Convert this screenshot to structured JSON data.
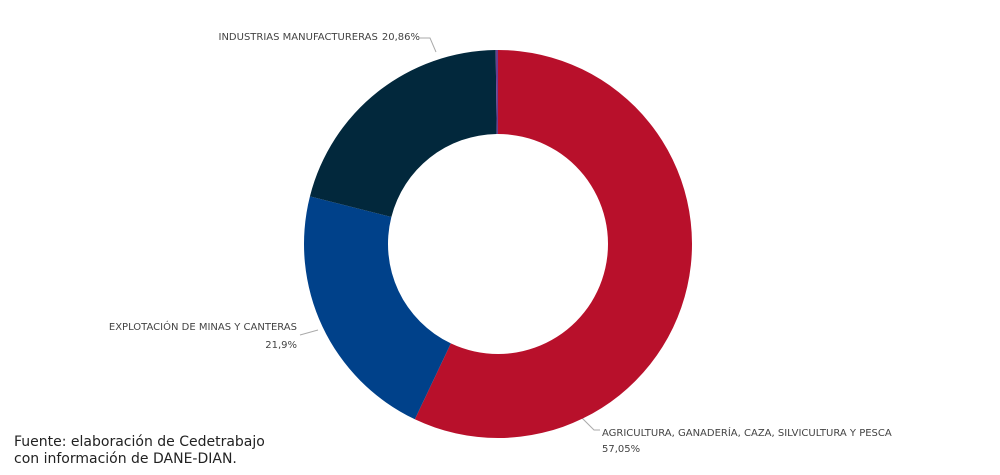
{
  "chart_data": {
    "type": "donut",
    "categories": [
      "AGRICULTURA, GANADERÍA, CAZA, SILVICULTURA Y PESCA",
      "EXPLOTACIÓN DE MINAS Y CANTERAS",
      "INDUSTRIAS MANUFACTURERAS",
      null
    ],
    "values": [
      57.05,
      21.9,
      20.86,
      0.19
    ],
    "value_labels": [
      "57,05%",
      "21,9%",
      "20,86%",
      null
    ],
    "colors": [
      "#b8102b",
      "#00418a",
      "#02283c",
      "#6a3d8f"
    ],
    "source": [
      "Fuente: elaboración de Cedetrabajo",
      "con información de DANE-DIAN."
    ]
  }
}
